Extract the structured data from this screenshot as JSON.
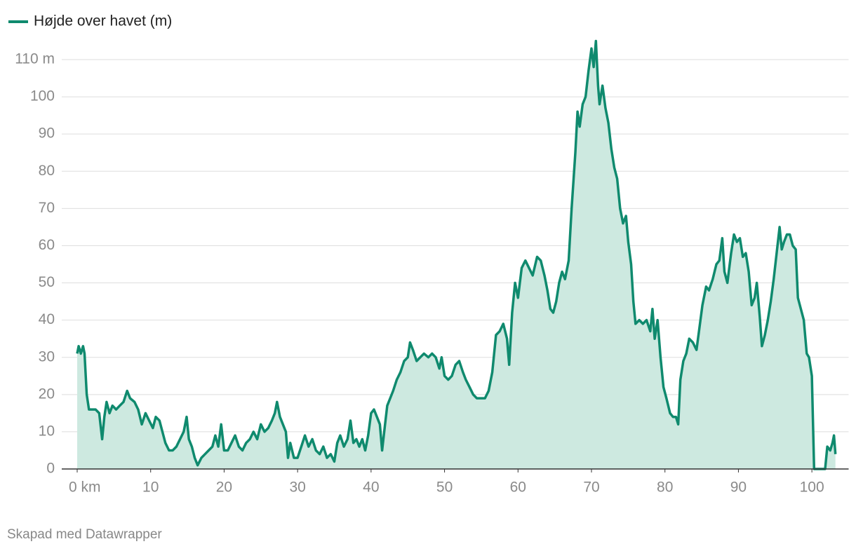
{
  "chart_data": {
    "type": "area",
    "x": [
      0,
      0.2,
      0.5,
      0.8,
      1.0,
      1.3,
      1.6,
      2,
      2.5,
      3,
      3.4,
      3.7,
      4,
      4.4,
      4.8,
      5.3,
      5.8,
      6.3,
      6.8,
      7.2,
      7.8,
      8.3,
      8.8,
      9.3,
      9.8,
      10.3,
      10.7,
      11.2,
      11.6,
      12,
      12.5,
      13,
      13.5,
      14,
      14.5,
      14.9,
      15.2,
      15.6,
      16,
      16.4,
      16.9,
      17.4,
      17.9,
      18.4,
      18.8,
      19.2,
      19.6,
      20,
      20.5,
      21,
      21.5,
      22,
      22.5,
      23,
      23.5,
      24,
      24.5,
      25,
      25.5,
      26,
      26.5,
      26.9,
      27.2,
      27.6,
      28,
      28.4,
      28.7,
      29,
      29.5,
      30,
      30.5,
      31,
      31.5,
      32,
      32.5,
      33,
      33.5,
      34,
      34.5,
      35,
      35.4,
      35.8,
      36.3,
      36.8,
      37.2,
      37.6,
      38,
      38.4,
      38.8,
      39.2,
      39.6,
      40,
      40.4,
      40.8,
      41.2,
      41.5,
      41.9,
      42.2,
      42.6,
      43,
      43.5,
      44,
      44.5,
      45,
      45.3,
      45.7,
      46.2,
      46.7,
      47.2,
      47.8,
      48.3,
      48.8,
      49.3,
      49.6,
      50,
      50.5,
      51,
      51.5,
      52,
      52.5,
      52.9,
      53.4,
      53.9,
      54.4,
      55,
      55.5,
      56,
      56.5,
      57,
      57.5,
      58,
      58.5,
      58.8,
      59.2,
      59.6,
      60,
      60.5,
      61,
      61.5,
      62,
      62.6,
      63.1,
      63.6,
      64,
      64.4,
      64.8,
      65.2,
      65.6,
      66,
      66.4,
      66.9,
      67.3,
      67.8,
      68.1,
      68.4,
      68.8,
      69.2,
      69.6,
      70,
      70.3,
      70.6,
      70.9,
      71.1,
      71.5,
      71.9,
      72.3,
      72.7,
      73.1,
      73.5,
      73.9,
      74.3,
      74.7,
      75,
      75.4,
      75.7,
      76,
      76.5,
      77,
      77.5,
      78,
      78.3,
      78.6,
      79,
      79.4,
      79.8,
      80.2,
      80.7,
      81.1,
      81.5,
      81.8,
      82.1,
      82.5,
      82.9,
      83.3,
      83.8,
      84.3,
      84.7,
      85.1,
      85.6,
      86,
      86.5,
      87,
      87.4,
      87.8,
      88.1,
      88.5,
      89,
      89.4,
      89.8,
      90.2,
      90.6,
      91,
      91.4,
      91.8,
      92.2,
      92.5,
      92.9,
      93.2,
      93.6,
      94,
      94.4,
      94.8,
      95.2,
      95.6,
      95.9,
      96.2,
      96.6,
      97,
      97.4,
      97.8,
      98.1,
      98.5,
      98.9,
      99.3,
      99.6,
      100,
      100.3,
      101.8,
      102.1,
      102.5,
      102.8,
      103,
      103.2
    ],
    "series": [
      {
        "name": "Højde over havet (m)",
        "color": "#0f8a6e",
        "values": [
          31,
          33,
          31,
          33,
          31,
          20,
          16,
          16,
          16,
          15,
          8,
          14,
          18,
          15,
          17,
          16,
          17,
          18,
          21,
          19,
          18,
          16,
          12,
          15,
          13,
          11,
          14,
          13,
          10,
          7,
          5,
          5,
          6,
          8,
          10,
          14,
          8,
          6,
          3,
          1,
          3,
          4,
          5,
          6,
          9,
          6,
          12,
          5,
          5,
          7,
          9,
          6,
          5,
          7,
          8,
          10,
          8,
          12,
          10,
          11,
          13,
          15,
          18,
          14,
          12,
          10,
          3,
          7,
          3,
          3,
          6,
          9,
          6,
          8,
          5,
          4,
          6,
          3,
          4,
          2,
          7,
          9,
          6,
          8,
          13,
          7,
          8,
          6,
          8,
          5,
          9,
          15,
          16,
          14,
          12,
          5,
          12,
          17,
          19,
          21,
          24,
          26,
          29,
          30,
          34,
          32,
          29,
          30,
          31,
          30,
          31,
          30,
          27,
          30,
          25,
          24,
          25,
          28,
          29,
          26,
          24,
          22,
          20,
          19,
          19,
          19,
          21,
          26,
          36,
          37,
          39,
          35,
          28,
          42,
          50,
          46,
          54,
          56,
          54,
          52,
          57,
          56,
          52,
          48,
          43,
          42,
          45,
          50,
          53,
          51,
          56,
          70,
          85,
          96,
          92,
          98,
          100,
          107,
          113,
          108,
          115,
          103,
          98,
          103,
          97,
          93,
          86,
          81,
          78,
          70,
          66,
          68,
          61,
          55,
          45,
          39,
          40,
          39,
          40,
          37,
          43,
          35,
          40,
          30,
          22,
          19,
          15,
          14,
          14,
          12,
          24,
          29,
          31,
          35,
          34,
          32,
          38,
          44,
          49,
          48,
          51,
          55,
          56,
          62,
          53,
          50,
          58,
          63,
          61,
          62,
          57,
          58,
          53,
          44,
          46,
          50,
          41,
          33,
          36,
          40,
          45,
          51,
          58,
          65,
          59,
          61,
          63,
          63,
          60,
          59,
          46,
          43,
          40,
          31,
          30,
          25,
          0,
          0,
          6,
          5,
          7,
          9,
          4
        ]
      }
    ],
    "area_color": "#cde9e0",
    "xlim": [
      0,
      105
    ],
    "ylim": [
      0,
      110
    ],
    "xticks": [
      {
        "value": 0,
        "label": "0 km"
      },
      10,
      20,
      30,
      40,
      50,
      60,
      70,
      80,
      90,
      100
    ],
    "yticks": [
      0,
      10,
      20,
      30,
      40,
      50,
      60,
      70,
      80,
      90,
      100,
      {
        "value": 110,
        "label": "110 m"
      }
    ],
    "grid": true,
    "footer": "Skapad med Datawrapper"
  }
}
